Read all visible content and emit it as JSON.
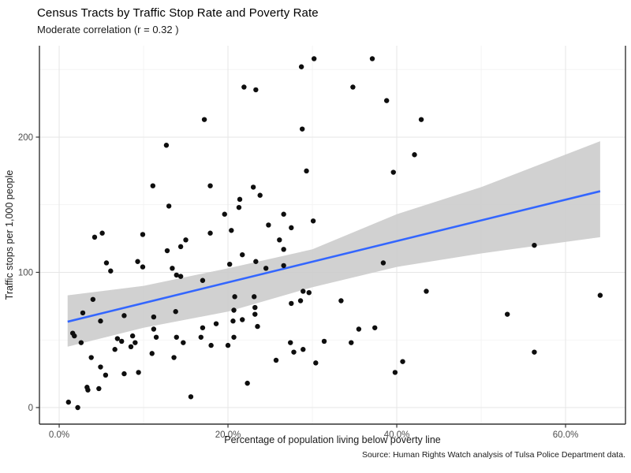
{
  "chart_data": {
    "type": "scatter",
    "title": "Census Tracts by Traffic Stop Rate and Poverty Rate",
    "subtitle": "Moderate correlation (r =  0.32 )",
    "caption": "Source: Human Rights Watch analysis of Tulsa Police Department data.",
    "xlabel": "Percentage of population living below poverty line",
    "ylabel": "Traffic stops per 1,000 people",
    "x_tick_labels": [
      "0.0%",
      "20.0%",
      "40.0%",
      "60.0%"
    ],
    "x_tick_values": [
      0,
      20,
      40,
      60
    ],
    "x_minor_gridlines": [
      10,
      30,
      50
    ],
    "y_tick_labels": [
      "0",
      "100",
      "200"
    ],
    "y_tick_values": [
      0,
      100,
      200
    ],
    "y_minor_gridlines": [
      50,
      150,
      250
    ],
    "xlim": [
      -2.34,
      67.1
    ],
    "ylim": [
      -12.25,
      267.6
    ],
    "grid": "on",
    "legend": "none",
    "points": [
      [
        30.2,
        258
      ],
      [
        28.7,
        252
      ],
      [
        37.1,
        258
      ],
      [
        21.9,
        237
      ],
      [
        23.3,
        235
      ],
      [
        34.8,
        237
      ],
      [
        17.2,
        213
      ],
      [
        28.8,
        206
      ],
      [
        38.8,
        227
      ],
      [
        42.9,
        213
      ],
      [
        12.7,
        194
      ],
      [
        42.1,
        187
      ],
      [
        11.1,
        164
      ],
      [
        17.9,
        164
      ],
      [
        23.0,
        163
      ],
      [
        23.8,
        157
      ],
      [
        21.4,
        154
      ],
      [
        21.3,
        148
      ],
      [
        29.3,
        175
      ],
      [
        39.6,
        174
      ],
      [
        13.0,
        149
      ],
      [
        19.6,
        143
      ],
      [
        26.6,
        143
      ],
      [
        30.1,
        138
      ],
      [
        24.8,
        135
      ],
      [
        27.5,
        133
      ],
      [
        5.1,
        129
      ],
      [
        9.9,
        128
      ],
      [
        17.9,
        129
      ],
      [
        20.4,
        131
      ],
      [
        4.2,
        126
      ],
      [
        15.0,
        124
      ],
      [
        14.4,
        119
      ],
      [
        12.8,
        116
      ],
      [
        26.1,
        124
      ],
      [
        26.6,
        117
      ],
      [
        21.7,
        113
      ],
      [
        23.3,
        108
      ],
      [
        5.6,
        107
      ],
      [
        6.1,
        101
      ],
      [
        9.3,
        108
      ],
      [
        9.9,
        104
      ],
      [
        13.4,
        103
      ],
      [
        13.9,
        98
      ],
      [
        14.4,
        97
      ],
      [
        17.0,
        94
      ],
      [
        24.5,
        103
      ],
      [
        26.6,
        105
      ],
      [
        56.3,
        120
      ],
      [
        38.4,
        107
      ],
      [
        20.2,
        106
      ],
      [
        4.0,
        80
      ],
      [
        2.8,
        70
      ],
      [
        4.9,
        64
      ],
      [
        7.7,
        68
      ],
      [
        11.2,
        67
      ],
      [
        13.8,
        71
      ],
      [
        20.8,
        82
      ],
      [
        20.7,
        72
      ],
      [
        23.1,
        82
      ],
      [
        23.2,
        74
      ],
      [
        23.2,
        69
      ],
      [
        20.6,
        64
      ],
      [
        21.7,
        65
      ],
      [
        18.6,
        62
      ],
      [
        23.5,
        60
      ],
      [
        43.5,
        86
      ],
      [
        33.4,
        79
      ],
      [
        64.1,
        83
      ],
      [
        53.1,
        69
      ],
      [
        27.5,
        77
      ],
      [
        28.6,
        79
      ],
      [
        28.9,
        86
      ],
      [
        29.6,
        85
      ],
      [
        1.6,
        55
      ],
      [
        1.8,
        53
      ],
      [
        2.6,
        48
      ],
      [
        6.6,
        43
      ],
      [
        6.9,
        51
      ],
      [
        7.4,
        49
      ],
      [
        8.5,
        45
      ],
      [
        8.7,
        53
      ],
      [
        9.0,
        48
      ],
      [
        11.0,
        40
      ],
      [
        11.2,
        58
      ],
      [
        11.5,
        52
      ],
      [
        13.6,
        37
      ],
      [
        13.9,
        52
      ],
      [
        14.7,
        48
      ],
      [
        16.8,
        52
      ],
      [
        17.0,
        59
      ],
      [
        18.0,
        46
      ],
      [
        20.0,
        46
      ],
      [
        20.7,
        52
      ],
      [
        27.4,
        48
      ],
      [
        27.8,
        41
      ],
      [
        28.9,
        43
      ],
      [
        31.4,
        49
      ],
      [
        25.7,
        35
      ],
      [
        30.4,
        33
      ],
      [
        35.5,
        58
      ],
      [
        37.4,
        59
      ],
      [
        34.6,
        48
      ],
      [
        56.3,
        41
      ],
      [
        3.8,
        37
      ],
      [
        4.9,
        30
      ],
      [
        5.5,
        24
      ],
      [
        7.7,
        25
      ],
      [
        9.4,
        26
      ],
      [
        3.3,
        15
      ],
      [
        3.4,
        13
      ],
      [
        4.7,
        14
      ],
      [
        22.3,
        18
      ],
      [
        40.7,
        34
      ],
      [
        39.8,
        26
      ],
      [
        15.6,
        8
      ],
      [
        1.1,
        4
      ],
      [
        2.2,
        0
      ]
    ],
    "trend_line": {
      "x": [
        1.0,
        64.1
      ],
      "y": [
        63.5,
        160
      ]
    },
    "confidence_band": {
      "x": [
        1.0,
        10,
        20,
        30,
        40,
        50,
        64.1
      ],
      "upper": [
        83,
        90,
        103,
        117,
        143,
        163,
        197
      ],
      "lower": [
        45,
        59,
        71,
        89,
        104,
        114,
        126
      ]
    },
    "colors": {
      "point": "#0e0e0e",
      "trend_line": "#3366ff",
      "confidence_band": "#cccccc",
      "grid_major": "#e6e6e6",
      "grid_minor": "#f2f2f2",
      "axis_line": "#333333",
      "tick_label": "#4d4d4d"
    }
  }
}
